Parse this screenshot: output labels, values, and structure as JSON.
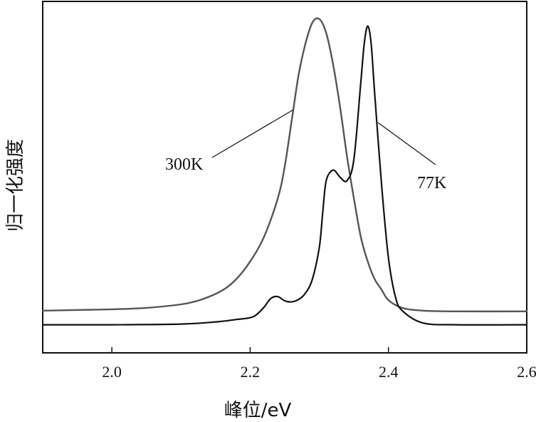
{
  "chart_data": {
    "type": "line",
    "title": "",
    "xlabel": "峰位/eV",
    "ylabel": "归一化强度",
    "xlim": [
      1.9,
      2.6
    ],
    "ylim": [
      0,
      1.0
    ],
    "xticks": [
      "2.0",
      "2.2",
      "2.4",
      "2.6"
    ],
    "grid": false,
    "legend": "none",
    "series": [
      {
        "name": "300K",
        "color": "#555555",
        "x": [
          1.9,
          2.0,
          2.05,
          2.1,
          2.13,
          2.16,
          2.18,
          2.2,
          2.22,
          2.24,
          2.25,
          2.26,
          2.27,
          2.28,
          2.29,
          2.3,
          2.31,
          2.32,
          2.33,
          2.34,
          2.35,
          2.36,
          2.37,
          2.38,
          2.39,
          2.4,
          2.42,
          2.45,
          2.5,
          2.6
        ],
        "y": [
          0.12,
          0.124,
          0.128,
          0.138,
          0.152,
          0.178,
          0.21,
          0.26,
          0.33,
          0.44,
          0.53,
          0.66,
          0.79,
          0.88,
          0.94,
          0.95,
          0.91,
          0.82,
          0.7,
          0.56,
          0.44,
          0.33,
          0.26,
          0.21,
          0.18,
          0.15,
          0.128,
          0.12,
          0.118,
          0.118
        ]
      },
      {
        "name": "77K",
        "color": "#111111",
        "x": [
          1.9,
          2.0,
          2.1,
          2.15,
          2.18,
          2.2,
          2.21,
          2.22,
          2.23,
          2.24,
          2.25,
          2.26,
          2.27,
          2.28,
          2.29,
          2.3,
          2.305,
          2.31,
          2.32,
          2.33,
          2.34,
          2.35,
          2.36,
          2.365,
          2.37,
          2.375,
          2.38,
          2.39,
          2.4,
          2.41,
          2.42,
          2.45,
          2.5,
          2.6
        ],
        "y": [
          0.08,
          0.08,
          0.082,
          0.088,
          0.095,
          0.1,
          0.11,
          0.13,
          0.155,
          0.16,
          0.148,
          0.145,
          0.152,
          0.17,
          0.21,
          0.3,
          0.4,
          0.49,
          0.52,
          0.5,
          0.49,
          0.55,
          0.77,
          0.88,
          0.93,
          0.88,
          0.74,
          0.48,
          0.27,
          0.16,
          0.12,
          0.085,
          0.08,
          0.08
        ]
      }
    ],
    "annotations": [
      "300K",
      "77K"
    ]
  }
}
